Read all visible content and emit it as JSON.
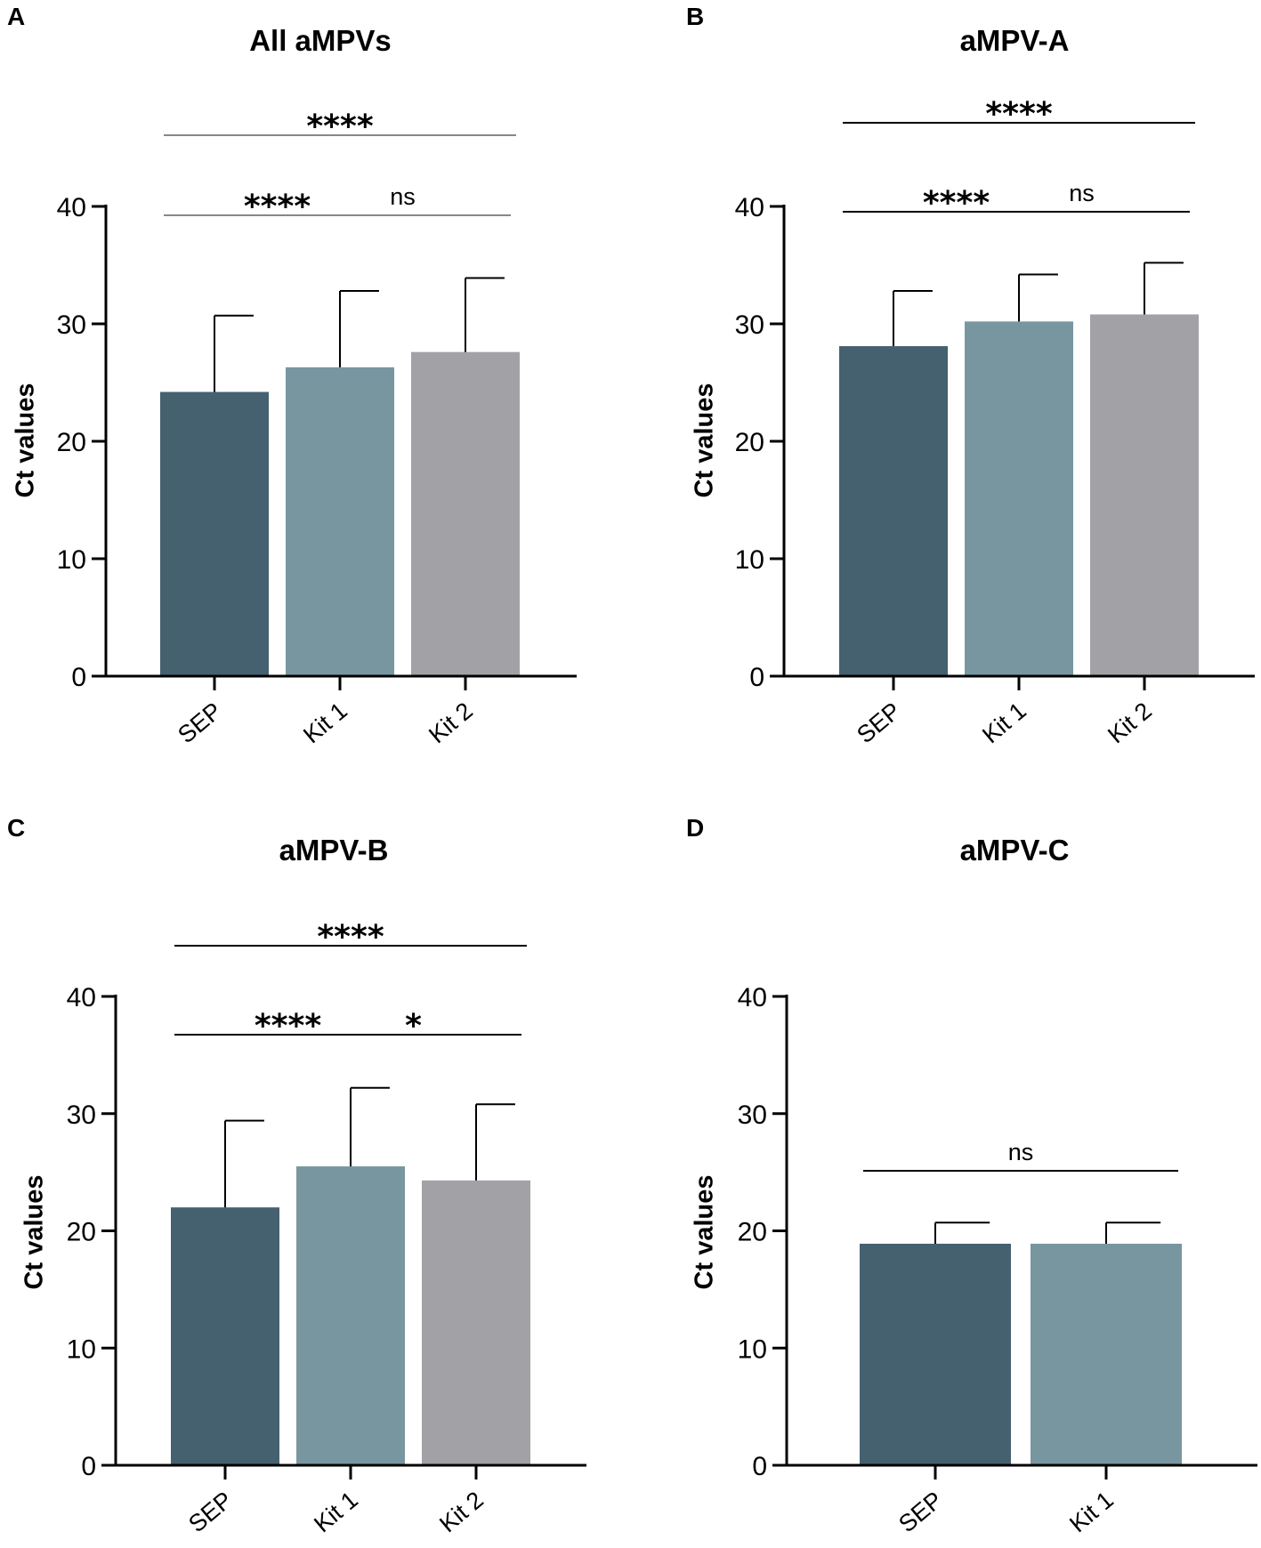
{
  "figure": {
    "panels": [
      "A",
      "B",
      "C",
      "D"
    ]
  },
  "chart_data": [
    {
      "panel": "A",
      "type": "bar",
      "title": "All aMPVs",
      "ylabel": "Ct values",
      "xlabel": "",
      "ylim": [
        0,
        40
      ],
      "yticks": [
        0,
        10,
        20,
        30,
        40
      ],
      "categories": [
        "SEP",
        "Kit 1",
        "Kit 2"
      ],
      "values": [
        24.2,
        26.3,
        27.6
      ],
      "error_upper": [
        30.7,
        32.8,
        33.9
      ],
      "colors": [
        "#45616f",
        "#7896a0",
        "#a2a1a6"
      ],
      "significance": [
        {
          "from": 0,
          "to": 1,
          "label": "****",
          "level": 0
        },
        {
          "from": 1,
          "to": 2,
          "label": "ns",
          "level": 0
        },
        {
          "from": 0,
          "to": 2,
          "label": "****",
          "level": 1
        }
      ]
    },
    {
      "panel": "B",
      "type": "bar",
      "title": "aMPV-A",
      "ylabel": "Ct values",
      "xlabel": "",
      "ylim": [
        0,
        40
      ],
      "yticks": [
        0,
        10,
        20,
        30,
        40
      ],
      "categories": [
        "SEP",
        "Kit 1",
        "Kit 2"
      ],
      "values": [
        28.1,
        30.2,
        30.8
      ],
      "error_upper": [
        32.8,
        34.2,
        35.2
      ],
      "colors": [
        "#45616f",
        "#7896a0",
        "#a2a1a6"
      ],
      "significance": [
        {
          "from": 0,
          "to": 1,
          "label": "****",
          "level": 0
        },
        {
          "from": 1,
          "to": 2,
          "label": "ns",
          "level": 0
        },
        {
          "from": 0,
          "to": 2,
          "label": "****",
          "level": 1
        }
      ]
    },
    {
      "panel": "C",
      "type": "bar",
      "title": "aMPV-B",
      "ylabel": "Ct values",
      "xlabel": "",
      "ylim": [
        0,
        40
      ],
      "yticks": [
        0,
        10,
        20,
        30,
        40
      ],
      "categories": [
        "SEP",
        "Kit 1",
        "Kit 2"
      ],
      "values": [
        22.0,
        25.5,
        24.3
      ],
      "error_upper": [
        29.4,
        32.2,
        30.8
      ],
      "colors": [
        "#45616f",
        "#7896a0",
        "#a2a1a6"
      ],
      "significance": [
        {
          "from": 0,
          "to": 1,
          "label": "****",
          "level": 0
        },
        {
          "from": 1,
          "to": 2,
          "label": "*",
          "level": 0
        },
        {
          "from": 0,
          "to": 2,
          "label": "****",
          "level": 1
        }
      ]
    },
    {
      "panel": "D",
      "type": "bar",
      "title": "aMPV-C",
      "ylabel": "Ct values",
      "xlabel": "",
      "ylim": [
        0,
        40
      ],
      "yticks": [
        0,
        10,
        20,
        30,
        40
      ],
      "categories": [
        "SEP",
        "Kit 1"
      ],
      "values": [
        18.9,
        18.9
      ],
      "error_upper": [
        20.7,
        20.7
      ],
      "colors": [
        "#45616f",
        "#7896a0"
      ],
      "significance": [
        {
          "from": 0,
          "to": 1,
          "label": "ns",
          "level": 0
        }
      ]
    }
  ]
}
